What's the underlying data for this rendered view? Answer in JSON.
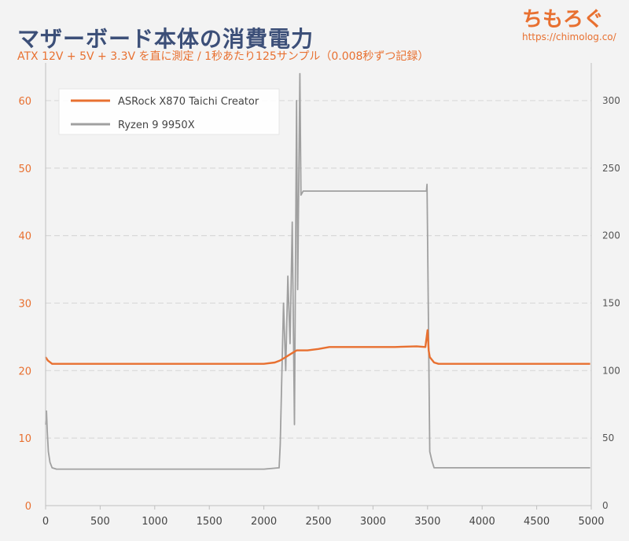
{
  "header": {
    "title": "マザーボード本体の消費電力",
    "subtitle": "ATX 12V + 5V + 3.3V を直に測定 / 1秒あたり125サンプル（0.008秒ずつ記録）",
    "logo_text": "ちもろぐ",
    "url": "https://chimolog.co/"
  },
  "colors": {
    "title": "#3c4f78",
    "accent": "#e87030",
    "series_board": "#e87030",
    "series_cpu": "#a0a0a0",
    "grid": "#d9d9d9",
    "background": "#f3f3f3"
  },
  "chart_data": {
    "type": "line",
    "title": "マザーボード本体の消費電力",
    "subtitle": "ATX 12V + 5V + 3.3V を直に測定 / 1秒あたり125サンプル（0.008秒ずつ記録）",
    "xlim": [
      0,
      5000
    ],
    "x_ticks": [
      "0",
      "500",
      "1000",
      "1500",
      "2000",
      "2500",
      "3000",
      "3500",
      "4000",
      "4500",
      "5000"
    ],
    "y_left": {
      "lim": [
        0,
        65
      ],
      "ticks": [
        "0",
        "10",
        "20",
        "30",
        "40",
        "50",
        "60"
      ]
    },
    "y_right": {
      "lim": [
        0,
        325
      ],
      "ticks": [
        "0",
        "50",
        "100",
        "150",
        "200",
        "250",
        "300"
      ]
    },
    "grid": true,
    "legend_position": "top-left",
    "series": [
      {
        "name": "ASRock X870 Taichi Creator",
        "axis": "left",
        "x": [
          0,
          20,
          60,
          200,
          500,
          1000,
          1500,
          2000,
          2100,
          2150,
          2200,
          2250,
          2300,
          2350,
          2400,
          2500,
          2600,
          2800,
          3000,
          3200,
          3400,
          3480,
          3500,
          3510,
          3520,
          3560,
          3600,
          4000,
          4500,
          4800,
          4990
        ],
        "y": [
          22,
          21.5,
          21,
          21,
          21,
          21,
          21,
          21,
          21.2,
          21.5,
          22,
          22.5,
          23,
          23,
          23,
          23.2,
          23.5,
          23.5,
          23.5,
          23.5,
          23.6,
          23.5,
          26,
          23,
          22,
          21.2,
          21,
          21,
          21,
          21,
          21
        ]
      },
      {
        "name": "Ryzen 9 9950X",
        "axis": "right",
        "x": [
          0,
          8,
          15,
          25,
          40,
          60,
          100,
          500,
          1000,
          1500,
          2000,
          2140,
          2150,
          2180,
          2200,
          2220,
          2240,
          2260,
          2280,
          2300,
          2310,
          2330,
          2340,
          2360,
          2500,
          3000,
          3490,
          3495,
          3500,
          3520,
          3540,
          3560,
          4000,
          4500,
          4990
        ],
        "y": [
          60,
          70,
          55,
          40,
          32,
          28,
          27,
          27,
          27,
          27,
          27,
          28,
          45,
          150,
          100,
          170,
          120,
          210,
          60,
          300,
          160,
          320,
          230,
          233,
          233,
          233,
          233,
          238,
          200,
          40,
          33,
          28,
          28,
          28,
          28
        ]
      }
    ]
  }
}
